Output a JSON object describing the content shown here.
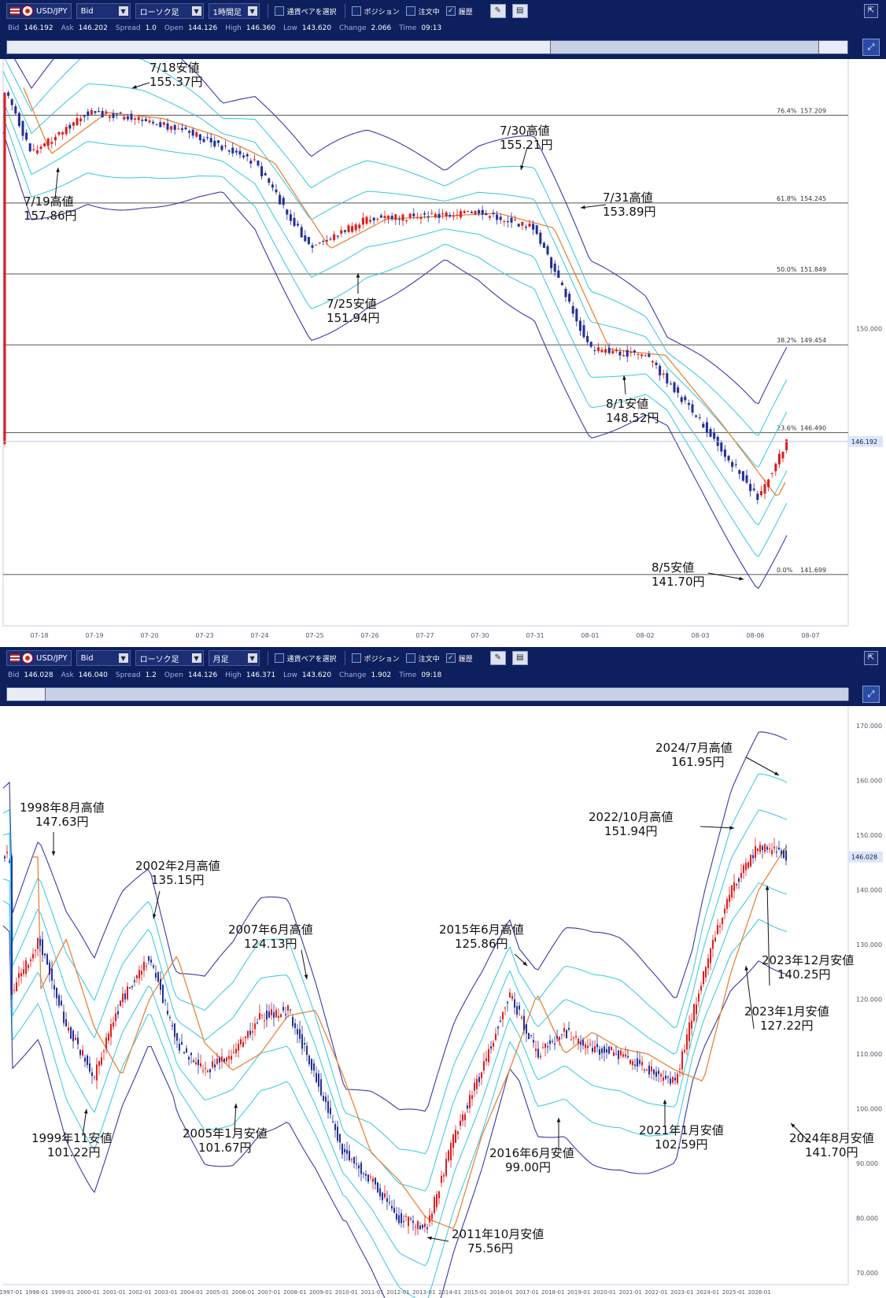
{
  "top": {
    "symbol": "USD/JPY",
    "price_type": "Bid",
    "chart_type": "ローソク足",
    "timeframe": "1時間足",
    "select_pair": "通貨ペアを選択",
    "position_label": "ポジション",
    "order_label": "注文中",
    "history_label": "履歴",
    "history_checked": true,
    "quote": {
      "bid_label": "Bid",
      "bid": "146.192",
      "ask_label": "Ask",
      "ask": "146.202",
      "spread_label": "Spread",
      "spread": "1.0",
      "open_label": "Open",
      "open": "144.126",
      "high_label": "High",
      "high": "146.360",
      "low_label": "Low",
      "low": "143.620",
      "change_label": "Change",
      "change": "2.066",
      "time_label": "Time",
      "time": "09:13"
    },
    "x_labels": [
      "07-18",
      "07-19",
      "07-20",
      "07-23",
      "07-24",
      "07-25",
      "07-26",
      "07-27",
      "07-30",
      "07-31",
      "08-01",
      "08-02",
      "08-03",
      "08-06",
      "08-07"
    ],
    "y_labels": [
      "150.000"
    ],
    "current_price": "146.192",
    "fib_levels": [
      {
        "pct": "76.4%",
        "value": "157.209"
      },
      {
        "pct": "61.8%",
        "value": "154.245"
      },
      {
        "pct": "50.0%",
        "value": "151.849"
      },
      {
        "pct": "38.2%",
        "value": "149.454"
      },
      {
        "pct": "23.6%",
        "value": "146.490"
      },
      {
        "pct": "0.0%",
        "value": "141.699"
      }
    ],
    "annotations": [
      {
        "line1": "7/19高値",
        "line2": "157.86円"
      },
      {
        "line1": "7/18安値",
        "line2": "155.37円"
      },
      {
        "line1": "7/30高値",
        "line2": "155.21円"
      },
      {
        "line1": "7/31高値",
        "line2": "153.89円"
      },
      {
        "line1": "7/25安値",
        "line2": "151.94円"
      },
      {
        "line1": "8/1安値",
        "line2": "148.52円"
      },
      {
        "line1": "8/5安値",
        "line2": "141.70円"
      }
    ]
  },
  "bottom": {
    "symbol": "USD/JPY",
    "price_type": "Bid",
    "chart_type": "ローソク足",
    "timeframe": "月足",
    "select_pair": "通貨ペアを選択",
    "position_label": "ポジション",
    "order_label": "注文中",
    "history_label": "履歴",
    "history_checked": true,
    "quote": {
      "bid_label": "Bid",
      "bid": "146.028",
      "ask_label": "Ask",
      "ask": "146.040",
      "spread_label": "Spread",
      "spread": "1.2",
      "open_label": "Open",
      "open": "144.126",
      "high_label": "High",
      "high": "146.371",
      "low_label": "Low",
      "low": "143.620",
      "change_label": "Change",
      "change": "1.902",
      "time_label": "Time",
      "time": "09:18"
    },
    "x_labels": [
      "1997-01",
      "1998-01",
      "1999-01",
      "2000-01",
      "2001-01",
      "2002-01",
      "2003-01",
      "2004-01",
      "2005-01",
      "2006-01",
      "2007-01",
      "2008-01",
      "2009-01",
      "2010-01",
      "2011-01",
      "2012-01",
      "2013-01",
      "2014-01",
      "2015-01",
      "2016-01",
      "2017-01",
      "2018-01",
      "2019-01",
      "2020-01",
      "2021-01",
      "2022-01",
      "2023-01",
      "2024-01",
      "2025-01",
      "2026-01"
    ],
    "y_labels": [
      "170.000",
      "160.000",
      "150.000",
      "140.000",
      "130.000",
      "120.000",
      "110.000",
      "100.000",
      "90.000",
      "80.000",
      "70.000"
    ],
    "current_price": "146.028",
    "annotations": [
      {
        "line1": "1998年8月高値",
        "line2": "147.63円"
      },
      {
        "line1": "2002年2月高値",
        "line2": "135.15円"
      },
      {
        "line1": "2007年6月高値",
        "line2": "124.13円"
      },
      {
        "line1": "2015年6月高値",
        "line2": "125.86円"
      },
      {
        "line1": "2024/7月高値",
        "line2": "161.95円"
      },
      {
        "line1": "2022/10月高値",
        "line2": "151.94円"
      },
      {
        "line1": "2024年8月安値",
        "line2": "141.70円"
      },
      {
        "line1": "2023年12月安値",
        "line2": "140.25円"
      },
      {
        "line1": "2023年1月安値",
        "line2": "127.22円"
      },
      {
        "line1": "1999年11安値",
        "line2": "101.22円"
      },
      {
        "line1": "2005年1月安値",
        "line2": "101.67円"
      },
      {
        "line1": "2016年6月安値",
        "line2": "99.00円"
      },
      {
        "line1": "2021年1月安値",
        "line2": "102.59円"
      },
      {
        "line1": "2011年10月安値",
        "line2": "75.56円"
      }
    ]
  },
  "chart_data": [
    {
      "type": "candlestick",
      "timeframe": "1時間足",
      "xlabel": "",
      "ylabel": "",
      "categories": [
        "07-18",
        "07-19",
        "07-20",
        "07-23",
        "07-24",
        "07-25",
        "07-26",
        "07-27",
        "07-30",
        "07-31",
        "08-01",
        "08-02",
        "08-03",
        "08-06"
      ],
      "series": [
        {
          "values": [
            155.9,
            157.3,
            157.1,
            156.5,
            155.6,
            152.7,
            153.7,
            153.8,
            153.9,
            153.4,
            149.3,
            149.1,
            146.8,
            144.3
          ]
        }
      ],
      "ylim": [
        140.5,
        159.0
      ],
      "fibonacci": [
        [
          76.4,
          157.209
        ],
        [
          61.8,
          154.245
        ],
        [
          50.0,
          151.849
        ],
        [
          38.2,
          149.454
        ],
        [
          23.6,
          146.49
        ],
        [
          0.0,
          141.699
        ]
      ],
      "overlays": [
        "bollinger bands",
        "moving average"
      ],
      "colors": {
        "up": "#e01c1c",
        "down": "#222f9a",
        "band_outer": "#3a3aa8",
        "band_inner": "#32c8e0",
        "ma": "#e8843a"
      }
    },
    {
      "type": "candlestick",
      "timeframe": "月足",
      "xlabel": "",
      "ylabel": "",
      "categories": [
        "1997",
        "1998",
        "1999",
        "2000",
        "2001",
        "2002",
        "2003",
        "2004",
        "2005",
        "2006",
        "2007",
        "2008",
        "2009",
        "2010",
        "2011",
        "2012",
        "2013",
        "2014",
        "2015",
        "2016",
        "2017",
        "2018",
        "2019",
        "2020",
        "2021",
        "2022",
        "2023",
        "2024"
      ],
      "series": [
        {
          "values": [
            121,
            131,
            115,
            106,
            120,
            128,
            112,
            107,
            110,
            117,
            118,
            106,
            92,
            87,
            80,
            78,
            95,
            107,
            121,
            110,
            114,
            111,
            110,
            107,
            105,
            125,
            140,
            148
          ]
        }
      ],
      "ylim": [
        70,
        170
      ],
      "overlays": [
        "bollinger bands",
        "moving average"
      ],
      "colors": {
        "up": "#e01c1c",
        "down": "#222f9a",
        "band_outer": "#3a3aa8",
        "band_inner": "#32c8e0",
        "ma": "#e8843a"
      }
    }
  ]
}
